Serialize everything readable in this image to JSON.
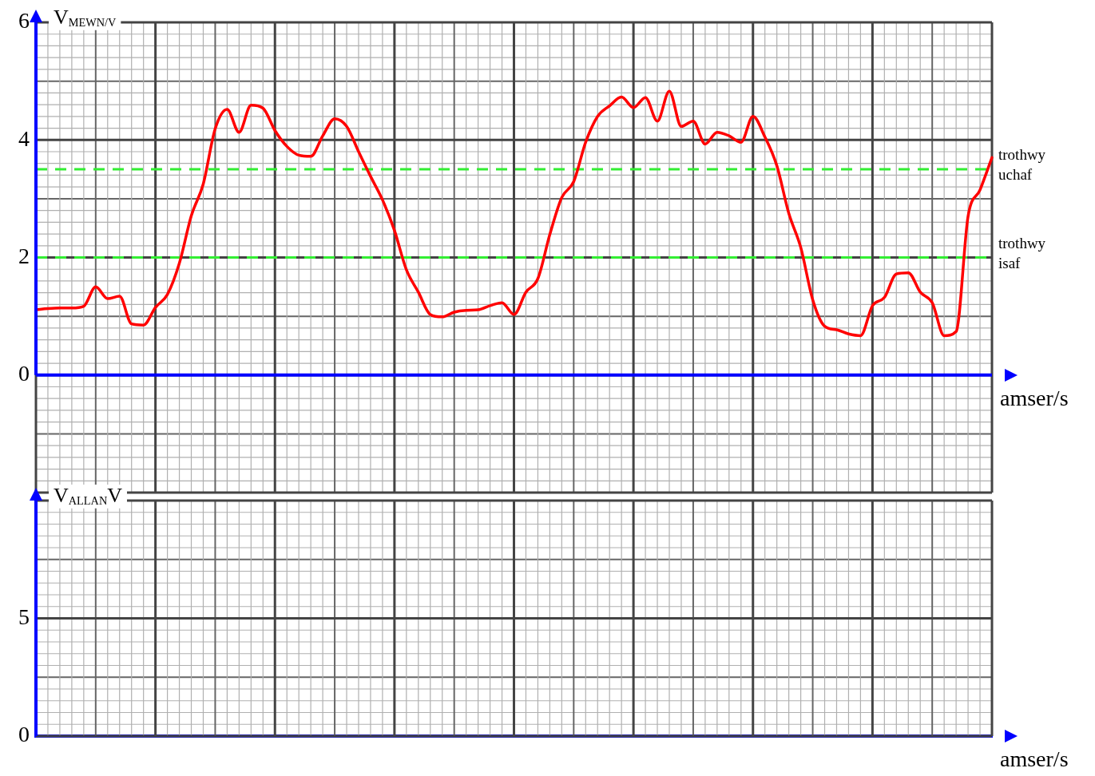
{
  "chart_data": [
    {
      "type": "line",
      "ylabel": "V$_{MEWN/V}$",
      "xlabel": "amser/s",
      "categories": [
        null,
        null,
        null,
        null,
        null,
        null,
        null,
        null,
        null,
        null,
        null,
        null,
        null,
        null,
        null,
        null,
        null,
        null,
        null,
        null,
        null,
        null,
        null,
        null,
        null,
        null,
        null,
        null,
        null,
        null,
        null,
        null,
        null,
        null,
        null,
        null,
        null,
        null,
        null,
        null,
        null,
        null,
        null,
        null,
        null,
        null,
        null,
        null,
        null,
        null,
        null,
        null,
        null,
        null,
        null,
        null,
        null,
        null,
        null,
        null,
        null,
        null,
        null,
        null,
        null,
        null,
        null,
        null,
        null,
        null,
        null,
        null,
        null,
        null,
        null,
        null,
        null,
        null,
        null,
        null,
        null
      ],
      "series": [
        {
          "color": "#ff0000",
          "values": [
            1.11,
            1.13,
            1.14,
            1.14,
            1.17,
            1.5,
            1.3,
            1.34,
            0.87,
            0.85,
            1.15,
            1.37,
            1.9,
            2.71,
            3.25,
            4.19,
            4.52,
            4.13,
            4.59,
            4.54,
            4.16,
            3.89,
            3.74,
            3.72,
            4.07,
            4.36,
            4.23,
            3.8,
            3.38,
            2.98,
            2.46,
            1.79,
            1.41,
            1.03,
            0.99,
            1.07,
            1.1,
            1.11,
            1.18,
            1.23,
            1.03,
            1.41,
            1.64,
            2.39,
            3.02,
            3.29,
            3.96,
            4.4,
            4.58,
            4.73,
            4.55,
            4.72,
            4.32,
            4.83,
            4.23,
            4.32,
            3.93,
            4.13,
            4.07,
            3.96,
            4.4,
            4.05,
            3.56,
            2.75,
            2.17,
            1.28,
            0.83,
            0.77,
            0.7,
            0.67,
            1.18,
            1.32,
            1.72,
            1.74,
            1.41,
            1.23,
            0.67,
            0.74,
            2.7,
            3.15,
            3.7
          ]
        }
      ],
      "ylim": [
        -2,
        6
      ],
      "yticks": [
        {
          "value": -2,
          "label": null
        },
        0,
        2,
        4,
        6
      ],
      "ref_lines": [
        {
          "axis": "y",
          "value": 0,
          "color": "#0000ff",
          "line_style": "solid"
        },
        {
          "axis": "y",
          "value": 3.5,
          "label": "trothwy uchaf",
          "color": "#33ee33",
          "line_style": "dashed"
        },
        {
          "axis": "y",
          "value": 2,
          "label": "trothwy isaf",
          "color": "#33ee33",
          "line_style": "dashed"
        }
      ],
      "grid": true,
      "legend": false,
      "tick_labels": "y",
      "marker": "none",
      "line_style": "solid"
    },
    {
      "type": "line",
      "ylabel": "V$_{ALLAN}$V",
      "xlabel": "amser/s",
      "categories": [
        null,
        null,
        null,
        null,
        null,
        null,
        null,
        null,
        null,
        null,
        null,
        null,
        null,
        null,
        null,
        null,
        null,
        null,
        null,
        null,
        null,
        null,
        null,
        null,
        null,
        null,
        null,
        null,
        null,
        null,
        null,
        null,
        null,
        null,
        null,
        null,
        null,
        null,
        null,
        null,
        null,
        null,
        null,
        null,
        null,
        null,
        null,
        null,
        null,
        null,
        null,
        null,
        null,
        null,
        null,
        null,
        null,
        null,
        null,
        null,
        null,
        null,
        null,
        null,
        null,
        null,
        null,
        null,
        null,
        null,
        null,
        null,
        null,
        null,
        null,
        null,
        null,
        null,
        null,
        null,
        null
      ],
      "ylim": [
        0,
        10
      ],
      "yticks": [
        0,
        5,
        {
          "value": 10,
          "label": null
        }
      ],
      "grid": true,
      "legend": false,
      "tick_labels": "y"
    }
  ]
}
